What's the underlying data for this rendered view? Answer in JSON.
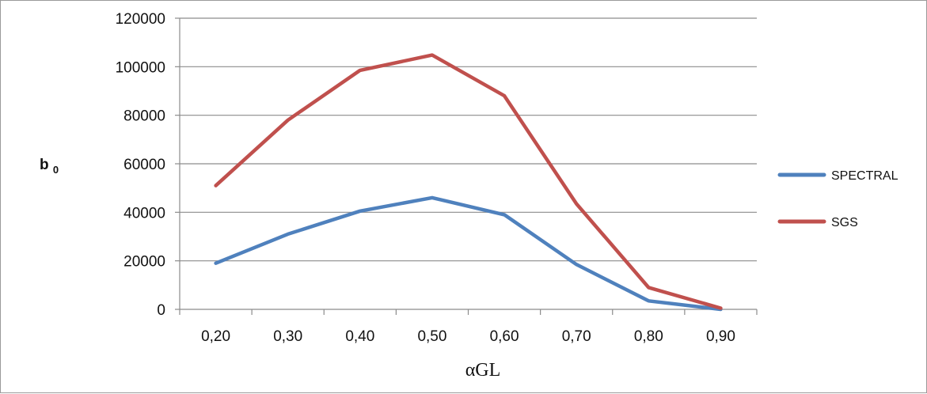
{
  "chart_data": {
    "type": "line",
    "categories": [
      "0,20",
      "0,30",
      "0,40",
      "0,50",
      "0,60",
      "0,70",
      "0,80",
      "0,90"
    ],
    "series": [
      {
        "name": "SPECTRAL",
        "values": [
          19000,
          31000,
          40500,
          46000,
          39000,
          18500,
          3500,
          0
        ],
        "color": "#4f81bd"
      },
      {
        "name": "SGS",
        "values": [
          51000,
          78000,
          98500,
          104800,
          88000,
          43500,
          9000,
          500
        ],
        "color": "#c0504d"
      }
    ],
    "xlabel": "αGL",
    "ylabel_main": "b",
    "ylabel_sub": "0",
    "ylim": [
      0,
      120000
    ],
    "yticks": [
      0,
      20000,
      40000,
      60000,
      80000,
      100000,
      120000
    ],
    "ytick_labels": [
      "0",
      "20000",
      "40000",
      "60000",
      "80000",
      "100000",
      "120000"
    ],
    "grid": "horizontal",
    "legend_position": "right"
  }
}
